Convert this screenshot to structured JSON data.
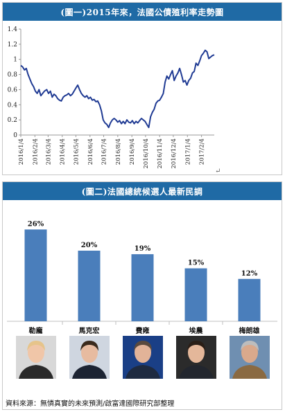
{
  "chart_data": [
    {
      "type": "line",
      "title": "(圖一)2015年來，法國公債殖利率走勢圖",
      "ylim": [
        0,
        1.4
      ],
      "yticks": [
        "0",
        "0.2",
        "0.4",
        "0.6",
        "0.8",
        "1",
        "1.2",
        "1.4"
      ],
      "xticks": [
        "2016/1/4",
        "2016/2/4",
        "2016/3/4",
        "2016/4/4",
        "2016/5/4",
        "2016/6/4",
        "2016/7/4",
        "2016/8/4",
        "2016/9/4",
        "2016/10/4",
        "2016/11/4",
        "2016/12/4",
        "2017/1/4",
        "2017/2/4"
      ],
      "grid": false,
      "series": [
        {
          "color": "#1f3a93",
          "x": [
            "2016/1/4",
            "2016/1/8",
            "2016/1/12",
            "2016/1/16",
            "2016/1/20",
            "2016/1/24",
            "2016/1/28",
            "2016/2/1",
            "2016/2/5",
            "2016/2/9",
            "2016/2/13",
            "2016/2/17",
            "2016/2/21",
            "2016/2/25",
            "2016/3/1",
            "2016/3/5",
            "2016/3/9",
            "2016/3/13",
            "2016/3/17",
            "2016/3/21",
            "2016/3/25",
            "2016/3/29",
            "2016/4/2",
            "2016/4/6",
            "2016/4/10",
            "2016/4/14",
            "2016/4/18",
            "2016/4/22",
            "2016/4/26",
            "2016/4/30",
            "2016/5/4",
            "2016/5/8",
            "2016/5/12",
            "2016/5/16",
            "2016/5/20",
            "2016/5/24",
            "2016/5/28",
            "2016/6/1",
            "2016/6/5",
            "2016/6/9",
            "2016/6/13",
            "2016/6/17",
            "2016/6/21",
            "2016/6/25",
            "2016/6/29",
            "2016/7/3",
            "2016/7/7",
            "2016/7/11",
            "2016/7/15",
            "2016/7/19",
            "2016/7/23",
            "2016/7/27",
            "2016/7/31",
            "2016/8/4",
            "2016/8/8",
            "2016/8/12",
            "2016/8/16",
            "2016/8/20",
            "2016/8/24",
            "2016/8/28",
            "2016/9/1",
            "2016/9/5",
            "2016/9/9",
            "2016/9/13",
            "2016/9/17",
            "2016/9/21",
            "2016/9/25",
            "2016/9/29",
            "2016/10/3",
            "2016/10/7",
            "2016/10/11",
            "2016/10/15",
            "2016/10/19",
            "2016/10/23",
            "2016/10/27",
            "2016/10/31",
            "2016/11/4",
            "2016/11/8",
            "2016/11/12",
            "2016/11/16",
            "2016/11/20",
            "2016/11/24",
            "2016/11/28",
            "2016/12/2",
            "2016/12/6",
            "2016/12/10",
            "2016/12/14",
            "2016/12/18",
            "2016/12/22",
            "2016/12/26",
            "2016/12/30",
            "2017/1/3",
            "2017/1/7",
            "2017/1/11",
            "2017/1/15",
            "2017/1/19",
            "2017/1/23",
            "2017/1/27",
            "2017/1/31",
            "2017/2/4",
            "2017/2/8",
            "2017/2/12",
            "2017/2/16",
            "2017/2/20",
            "2017/2/24",
            "2017/2/28",
            "2017/3/4"
          ],
          "values": [
            0.92,
            0.9,
            0.86,
            0.88,
            0.8,
            0.74,
            0.68,
            0.64,
            0.58,
            0.55,
            0.6,
            0.52,
            0.55,
            0.58,
            0.6,
            0.55,
            0.58,
            0.5,
            0.54,
            0.52,
            0.48,
            0.46,
            0.45,
            0.5,
            0.52,
            0.53,
            0.55,
            0.52,
            0.54,
            0.58,
            0.62,
            0.66,
            0.6,
            0.55,
            0.52,
            0.5,
            0.52,
            0.48,
            0.5,
            0.46,
            0.47,
            0.44,
            0.45,
            0.4,
            0.32,
            0.2,
            0.16,
            0.14,
            0.1,
            0.16,
            0.2,
            0.22,
            0.2,
            0.17,
            0.19,
            0.15,
            0.18,
            0.15,
            0.2,
            0.17,
            0.16,
            0.19,
            0.15,
            0.18,
            0.16,
            0.19,
            0.22,
            0.2,
            0.18,
            0.14,
            0.1,
            0.24,
            0.3,
            0.34,
            0.42,
            0.45,
            0.46,
            0.5,
            0.55,
            0.7,
            0.78,
            0.74,
            0.8,
            0.85,
            0.72,
            0.78,
            0.82,
            0.88,
            0.8,
            0.7,
            0.72,
            0.66,
            0.72,
            0.75,
            0.82,
            0.84,
            0.95,
            0.92,
            0.98,
            1.05,
            1.08,
            1.12,
            1.1,
            1.01,
            1.03,
            1.05,
            1.06
          ]
        }
      ]
    },
    {
      "type": "bar",
      "title": "(圖二)法國總統候選人最新民調",
      "categories": [
        "勒龐",
        "馬克宏",
        "費雍",
        "埃農",
        "梅朗雄"
      ],
      "values": [
        26,
        20,
        19,
        15,
        12
      ],
      "value_labels": [
        "26%",
        "20%",
        "19%",
        "15%",
        "12%"
      ],
      "ylim": [
        0,
        30
      ],
      "grid": false,
      "color": "#4a7ebb"
    }
  ],
  "source_note": "資料來源：無憐真實的未來預測/啟富達國際研究部整理",
  "photos": [
    {
      "icon": "portrait-photo-icon",
      "skin": "#f0c6a8",
      "hair": "#e6c48a",
      "cloth": "#2a2a2a",
      "bg": "#d8d8d8"
    },
    {
      "icon": "portrait-photo-icon",
      "skin": "#e7bba0",
      "hair": "#3a2a1c",
      "cloth": "#1c2433",
      "bg": "#cfd6e0"
    },
    {
      "icon": "portrait-photo-icon",
      "skin": "#e2b398",
      "hair": "#5a4a3e",
      "cloth": "#1e2a40",
      "bg": "#1a3f86"
    },
    {
      "icon": "portrait-photo-icon",
      "skin": "#e4b79a",
      "hair": "#2a1e16",
      "cloth": "#22262e",
      "bg": "#2b2b2b"
    },
    {
      "icon": "portrait-photo-icon",
      "skin": "#d9a98c",
      "hair": "#bdbdbd",
      "cloth": "#8a6a42",
      "bg": "#6f8fb1"
    }
  ],
  "colors": {
    "banner": "#1f6aa5",
    "line": "#1f3a93",
    "bar": "#4a7ebb",
    "bar_axis": "#bfbfbf",
    "divider": "#c8c8c8"
  }
}
